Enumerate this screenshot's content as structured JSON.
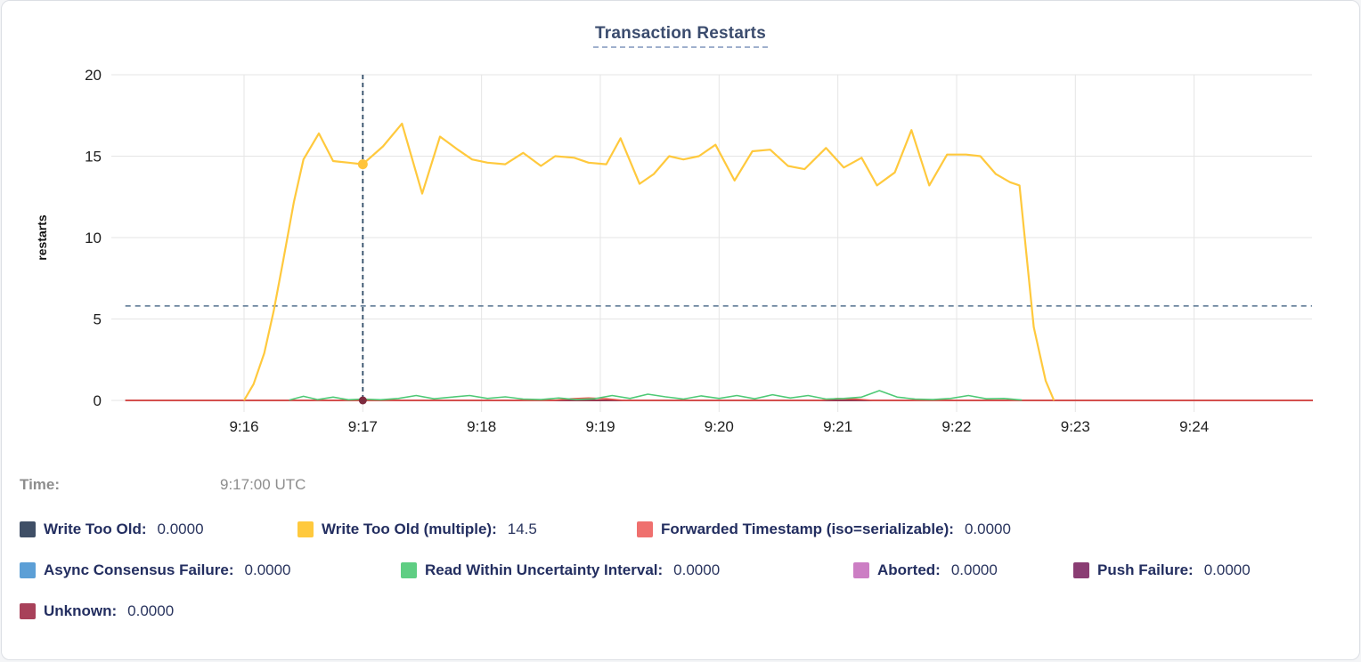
{
  "title": "Transaction Restarts",
  "time_row": {
    "label": "Time:",
    "value": "9:17:00 UTC"
  },
  "legend_rows": [
    [
      {
        "label": "Write Too Old:",
        "value": "0.0000",
        "color": "#3F4F66",
        "swatch": "write-too-old"
      },
      {
        "label": "Write Too Old (multiple):",
        "value": "14.5",
        "color": "#FFC93D",
        "swatch": "write-too-old-multiple"
      },
      {
        "label": "Forwarded Timestamp (iso=serializable):",
        "value": "0.0000",
        "color": "#EF706E",
        "swatch": "forwarded-timestamp"
      }
    ],
    [
      {
        "label": "Async Consensus Failure:",
        "value": "0.0000",
        "color": "#5C9FD6",
        "swatch": "async-consensus-failure"
      },
      {
        "label": "Read Within Uncertainty Interval:",
        "value": "0.0000",
        "color": "#5FCE83",
        "swatch": "read-within-uncertainty-interval"
      },
      {
        "label": "Aborted:",
        "value": "0.0000",
        "color": "#CC7EC4",
        "swatch": "aborted"
      },
      {
        "label": "Push Failure:",
        "value": "0.0000",
        "color": "#8A3D73",
        "swatch": "push-failure"
      }
    ],
    [
      {
        "label": "Unknown:",
        "value": "0.0000",
        "color": "#A8415A",
        "swatch": "unknown"
      }
    ]
  ],
  "chart_data": {
    "type": "line",
    "title": "Transaction Restarts",
    "xlabel": "",
    "ylabel": "restarts",
    "ylim": [
      0,
      20
    ],
    "y_ticks": [
      0,
      5,
      10,
      15,
      20
    ],
    "x_ticks": [
      {
        "t": 16,
        "label": "9:16"
      },
      {
        "t": 17,
        "label": "9:17"
      },
      {
        "t": 18,
        "label": "9:18"
      },
      {
        "t": 19,
        "label": "9:19"
      },
      {
        "t": 20,
        "label": "9:20"
      },
      {
        "t": 21,
        "label": "9:21"
      },
      {
        "t": 22,
        "label": "9:22"
      },
      {
        "t": 23,
        "label": "9:23"
      },
      {
        "t": 24,
        "label": "9:24"
      }
    ],
    "x_domain_minutes": [
      15,
      25
    ],
    "grid": true,
    "legend_position": "bottom",
    "threshold_line": {
      "value": 5.8,
      "color": "#53718E"
    },
    "hover": {
      "t": 17,
      "time_label": "9:17:00 UTC",
      "line_color": "#2E4A66",
      "dots": [
        {
          "series": "Write Too Old (multiple)",
          "value": 14.5,
          "color": "#FFC43C",
          "r": 5.5
        },
        {
          "series": "Unknown",
          "value": 0,
          "color": "#7D2B3F",
          "r": 4.5
        }
      ]
    },
    "series": [
      {
        "name": "Unknown",
        "color": "#99394F",
        "width": 2,
        "points": [
          [
            15.0,
            0
          ],
          [
            25.0,
            0
          ]
        ]
      },
      {
        "name": "Forwarded Timestamp (iso=serializable)",
        "color": "#E8584F",
        "width": 1.6,
        "points": [
          [
            15.0,
            0
          ],
          [
            18.6,
            0
          ],
          [
            18.75,
            0.1
          ],
          [
            18.9,
            0.15
          ],
          [
            19.05,
            0.1
          ],
          [
            19.2,
            0
          ],
          [
            20.85,
            0
          ],
          [
            21.0,
            0.12
          ],
          [
            21.15,
            0.08
          ],
          [
            21.3,
            0
          ],
          [
            25.0,
            0
          ]
        ]
      },
      {
        "name": "Read Within Uncertainty Interval",
        "color": "#4EC975",
        "width": 1.6,
        "points": [
          [
            16.38,
            0.02
          ],
          [
            16.5,
            0.25
          ],
          [
            16.62,
            0.05
          ],
          [
            16.75,
            0.2
          ],
          [
            16.88,
            0.04
          ],
          [
            17.0,
            0.08
          ],
          [
            17.15,
            0.04
          ],
          [
            17.3,
            0.12
          ],
          [
            17.45,
            0.3
          ],
          [
            17.6,
            0.1
          ],
          [
            17.75,
            0.2
          ],
          [
            17.9,
            0.3
          ],
          [
            18.05,
            0.12
          ],
          [
            18.2,
            0.22
          ],
          [
            18.35,
            0.08
          ],
          [
            18.5,
            0.05
          ],
          [
            18.65,
            0.15
          ],
          [
            18.8,
            0.05
          ],
          [
            18.95,
            0.1
          ],
          [
            19.1,
            0.3
          ],
          [
            19.25,
            0.12
          ],
          [
            19.4,
            0.38
          ],
          [
            19.55,
            0.22
          ],
          [
            19.7,
            0.08
          ],
          [
            19.85,
            0.28
          ],
          [
            20.0,
            0.12
          ],
          [
            20.15,
            0.3
          ],
          [
            20.3,
            0.1
          ],
          [
            20.45,
            0.35
          ],
          [
            20.6,
            0.15
          ],
          [
            20.75,
            0.3
          ],
          [
            20.9,
            0.08
          ],
          [
            21.05,
            0.12
          ],
          [
            21.2,
            0.2
          ],
          [
            21.35,
            0.6
          ],
          [
            21.5,
            0.2
          ],
          [
            21.65,
            0.08
          ],
          [
            21.8,
            0.05
          ],
          [
            21.95,
            0.12
          ],
          [
            22.1,
            0.3
          ],
          [
            22.25,
            0.1
          ],
          [
            22.4,
            0.12
          ],
          [
            22.55,
            0.02
          ]
        ]
      },
      {
        "name": "Write Too Old (multiple)",
        "color": "#FFC93D",
        "width": 2.2,
        "points": [
          [
            16.0,
            0
          ],
          [
            16.08,
            1.0
          ],
          [
            16.17,
            2.9
          ],
          [
            16.25,
            5.5
          ],
          [
            16.33,
            8.6
          ],
          [
            16.42,
            12.2
          ],
          [
            16.5,
            14.8
          ],
          [
            16.63,
            16.4
          ],
          [
            16.75,
            14.7
          ],
          [
            16.88,
            14.6
          ],
          [
            17.0,
            14.5
          ],
          [
            17.17,
            15.6
          ],
          [
            17.33,
            17.0
          ],
          [
            17.5,
            12.7
          ],
          [
            17.65,
            16.2
          ],
          [
            17.8,
            15.4
          ],
          [
            17.92,
            14.8
          ],
          [
            18.05,
            14.6
          ],
          [
            18.2,
            14.5
          ],
          [
            18.35,
            15.2
          ],
          [
            18.5,
            14.4
          ],
          [
            18.62,
            15.0
          ],
          [
            18.78,
            14.9
          ],
          [
            18.9,
            14.6
          ],
          [
            19.05,
            14.5
          ],
          [
            19.17,
            16.1
          ],
          [
            19.33,
            13.3
          ],
          [
            19.45,
            13.9
          ],
          [
            19.58,
            15.0
          ],
          [
            19.7,
            14.8
          ],
          [
            19.83,
            15.0
          ],
          [
            19.97,
            15.7
          ],
          [
            20.13,
            13.5
          ],
          [
            20.28,
            15.3
          ],
          [
            20.43,
            15.4
          ],
          [
            20.58,
            14.4
          ],
          [
            20.72,
            14.2
          ],
          [
            20.9,
            15.5
          ],
          [
            21.05,
            14.3
          ],
          [
            21.2,
            14.9
          ],
          [
            21.33,
            13.2
          ],
          [
            21.48,
            14.0
          ],
          [
            21.62,
            16.6
          ],
          [
            21.77,
            13.2
          ],
          [
            21.92,
            15.1
          ],
          [
            22.08,
            15.1
          ],
          [
            22.2,
            15.0
          ],
          [
            22.33,
            13.9
          ],
          [
            22.45,
            13.4
          ],
          [
            22.53,
            13.2
          ],
          [
            22.65,
            4.5
          ],
          [
            22.75,
            1.2
          ],
          [
            22.82,
            0
          ]
        ]
      }
    ]
  }
}
